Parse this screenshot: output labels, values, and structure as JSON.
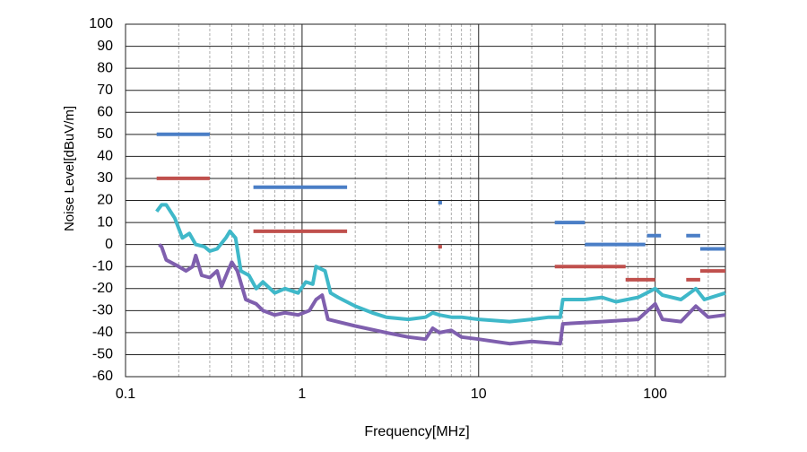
{
  "chart_data": {
    "type": "line",
    "xscale": "log",
    "grid": true,
    "xlabel": "Frequency[MHz]",
    "ylabel": "Noise Level[dBuV/m]",
    "xlim": [
      0.1,
      250
    ],
    "ylim": [
      -60,
      100
    ],
    "xticks": [
      0.1,
      1,
      10,
      100
    ],
    "xminorticks": [
      0.2,
      0.3,
      0.4,
      0.5,
      0.6,
      0.7,
      0.8,
      0.9,
      2,
      3,
      4,
      5,
      6,
      7,
      8,
      9,
      20,
      30,
      40,
      50,
      60,
      70,
      80,
      90,
      200
    ],
    "yticks": [
      100,
      90,
      80,
      70,
      60,
      50,
      40,
      30,
      20,
      10,
      0,
      -10,
      -20,
      -30,
      -40,
      -50,
      -60
    ],
    "series": [
      {
        "color": "#4a7ec6",
        "width": 4,
        "x": [
          0.15,
          0.3,
          null,
          0.53,
          1.8,
          null,
          5.9,
          6.2,
          null,
          27,
          40,
          null,
          40,
          88,
          null,
          90,
          108,
          null,
          150,
          180,
          null,
          180,
          250
        ],
        "values": [
          50,
          50,
          null,
          26,
          26,
          null,
          19,
          19,
          null,
          10,
          10,
          null,
          0,
          0,
          null,
          4,
          4,
          null,
          4,
          4,
          null,
          -2,
          -2
        ]
      },
      {
        "color": "#c0504d",
        "width": 4,
        "x": [
          0.15,
          0.3,
          null,
          0.53,
          1.8,
          null,
          5.9,
          6.2,
          null,
          27,
          68,
          null,
          68,
          100,
          null,
          150,
          180,
          null,
          180,
          250
        ],
        "values": [
          30,
          30,
          null,
          6,
          6,
          null,
          -1,
          -1,
          null,
          -10,
          -10,
          null,
          -16,
          -16,
          null,
          -16,
          -16,
          null,
          -12,
          -12
        ]
      },
      {
        "color": "#3fb8c9",
        "width": 4,
        "x": [
          0.15,
          0.16,
          0.17,
          0.19,
          0.21,
          0.23,
          0.25,
          0.28,
          0.3,
          0.33,
          0.37,
          0.39,
          0.42,
          0.45,
          0.5,
          0.55,
          0.6,
          0.7,
          0.8,
          0.95,
          1.05,
          1.15,
          1.2,
          1.35,
          1.45,
          1.6,
          2,
          2.5,
          3,
          4,
          5,
          5.5,
          6,
          7,
          8,
          10,
          15,
          20,
          25,
          29,
          30,
          40,
          50,
          60,
          80,
          100,
          110,
          140,
          170,
          190,
          250
        ],
        "values": [
          15,
          18,
          18,
          12,
          3,
          5,
          0,
          -1,
          -3,
          -2,
          3,
          6,
          3,
          -12,
          -14,
          -20,
          -17,
          -22,
          -20,
          -22,
          -17,
          -18,
          -10,
          -12,
          -22,
          -24,
          -28,
          -31,
          -33,
          -34,
          -33,
          -31,
          -32,
          -33,
          -33,
          -34,
          -35,
          -34,
          -33,
          -33,
          -25,
          -25,
          -24,
          -26,
          -24,
          -20,
          -23,
          -25,
          -20,
          -25,
          -22
        ]
      },
      {
        "color": "#7f5fae",
        "width": 4,
        "x": [
          0.155,
          0.16,
          0.17,
          0.2,
          0.22,
          0.24,
          0.25,
          0.27,
          0.3,
          0.33,
          0.35,
          0.38,
          0.4,
          0.43,
          0.48,
          0.55,
          0.6,
          0.7,
          0.8,
          0.95,
          1.1,
          1.2,
          1.3,
          1.4,
          2,
          3,
          4,
          5,
          5.5,
          6,
          7,
          8,
          10,
          15,
          20,
          29,
          30,
          50,
          80,
          100,
          110,
          140,
          170,
          200,
          250
        ],
        "values": [
          0,
          -1,
          -7,
          -10,
          -12,
          -10,
          -5,
          -14,
          -15,
          -12,
          -19,
          -12,
          -8,
          -12,
          -25,
          -27,
          -30,
          -32,
          -31,
          -32,
          -30,
          -25,
          -23,
          -34,
          -37,
          -40,
          -42,
          -43,
          -38,
          -40,
          -39,
          -42,
          -43,
          -45,
          -44,
          -45,
          -36,
          -35,
          -34,
          -27,
          -34,
          -35,
          -28,
          -33,
          -32
        ]
      }
    ]
  }
}
